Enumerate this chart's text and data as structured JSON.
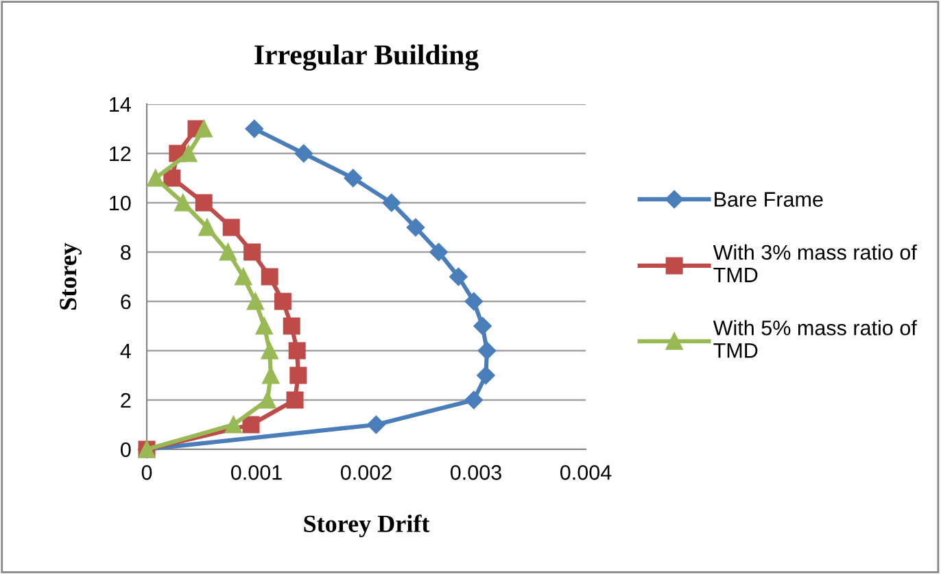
{
  "chart_data": {
    "type": "line",
    "title": "Irregular Building",
    "xlabel": "Storey Drift",
    "ylabel": "Storey",
    "xlim": [
      0,
      0.004
    ],
    "xticks": [
      0,
      0.001,
      0.002,
      0.003,
      0.004
    ],
    "ylim": [
      0,
      14
    ],
    "yticks": [
      0,
      2,
      4,
      6,
      8,
      10,
      12,
      14
    ],
    "grid": "y",
    "legend": "right",
    "series": [
      {
        "name": "Bare Frame",
        "color": "#4a7ebb",
        "marker": "diamond",
        "x": [
          0,
          0.00209,
          0.00298,
          0.00309,
          0.0031,
          0.00306,
          0.00298,
          0.00284,
          0.00266,
          0.00245,
          0.00223,
          0.00188,
          0.00143,
          0.00098
        ],
        "values": [
          0,
          1,
          2,
          3,
          4,
          5,
          6,
          7,
          8,
          9,
          10,
          11,
          12,
          13
        ]
      },
      {
        "name": "With 3% mass ratio of TMD",
        "color": "#be4b48",
        "marker": "square",
        "x": [
          0,
          0.00095,
          0.00135,
          0.00138,
          0.00137,
          0.00132,
          0.00124,
          0.00112,
          0.00096,
          0.00077,
          0.00052,
          0.00023,
          0.00028,
          0.00045
        ],
        "values": [
          0,
          1,
          2,
          3,
          4,
          5,
          6,
          7,
          8,
          9,
          10,
          11,
          12,
          13
        ]
      },
      {
        "name": "With 5% mass ratio of TMD",
        "color": "#98b954",
        "marker": "triangle",
        "x": [
          0,
          0.00079,
          0.0011,
          0.00113,
          0.00112,
          0.00107,
          0.00099,
          0.00088,
          0.00074,
          0.00055,
          0.00033,
          8e-05,
          0.00038,
          0.00052
        ],
        "values": [
          0,
          1,
          2,
          3,
          4,
          5,
          6,
          7,
          8,
          9,
          10,
          11,
          12,
          13
        ]
      }
    ]
  }
}
